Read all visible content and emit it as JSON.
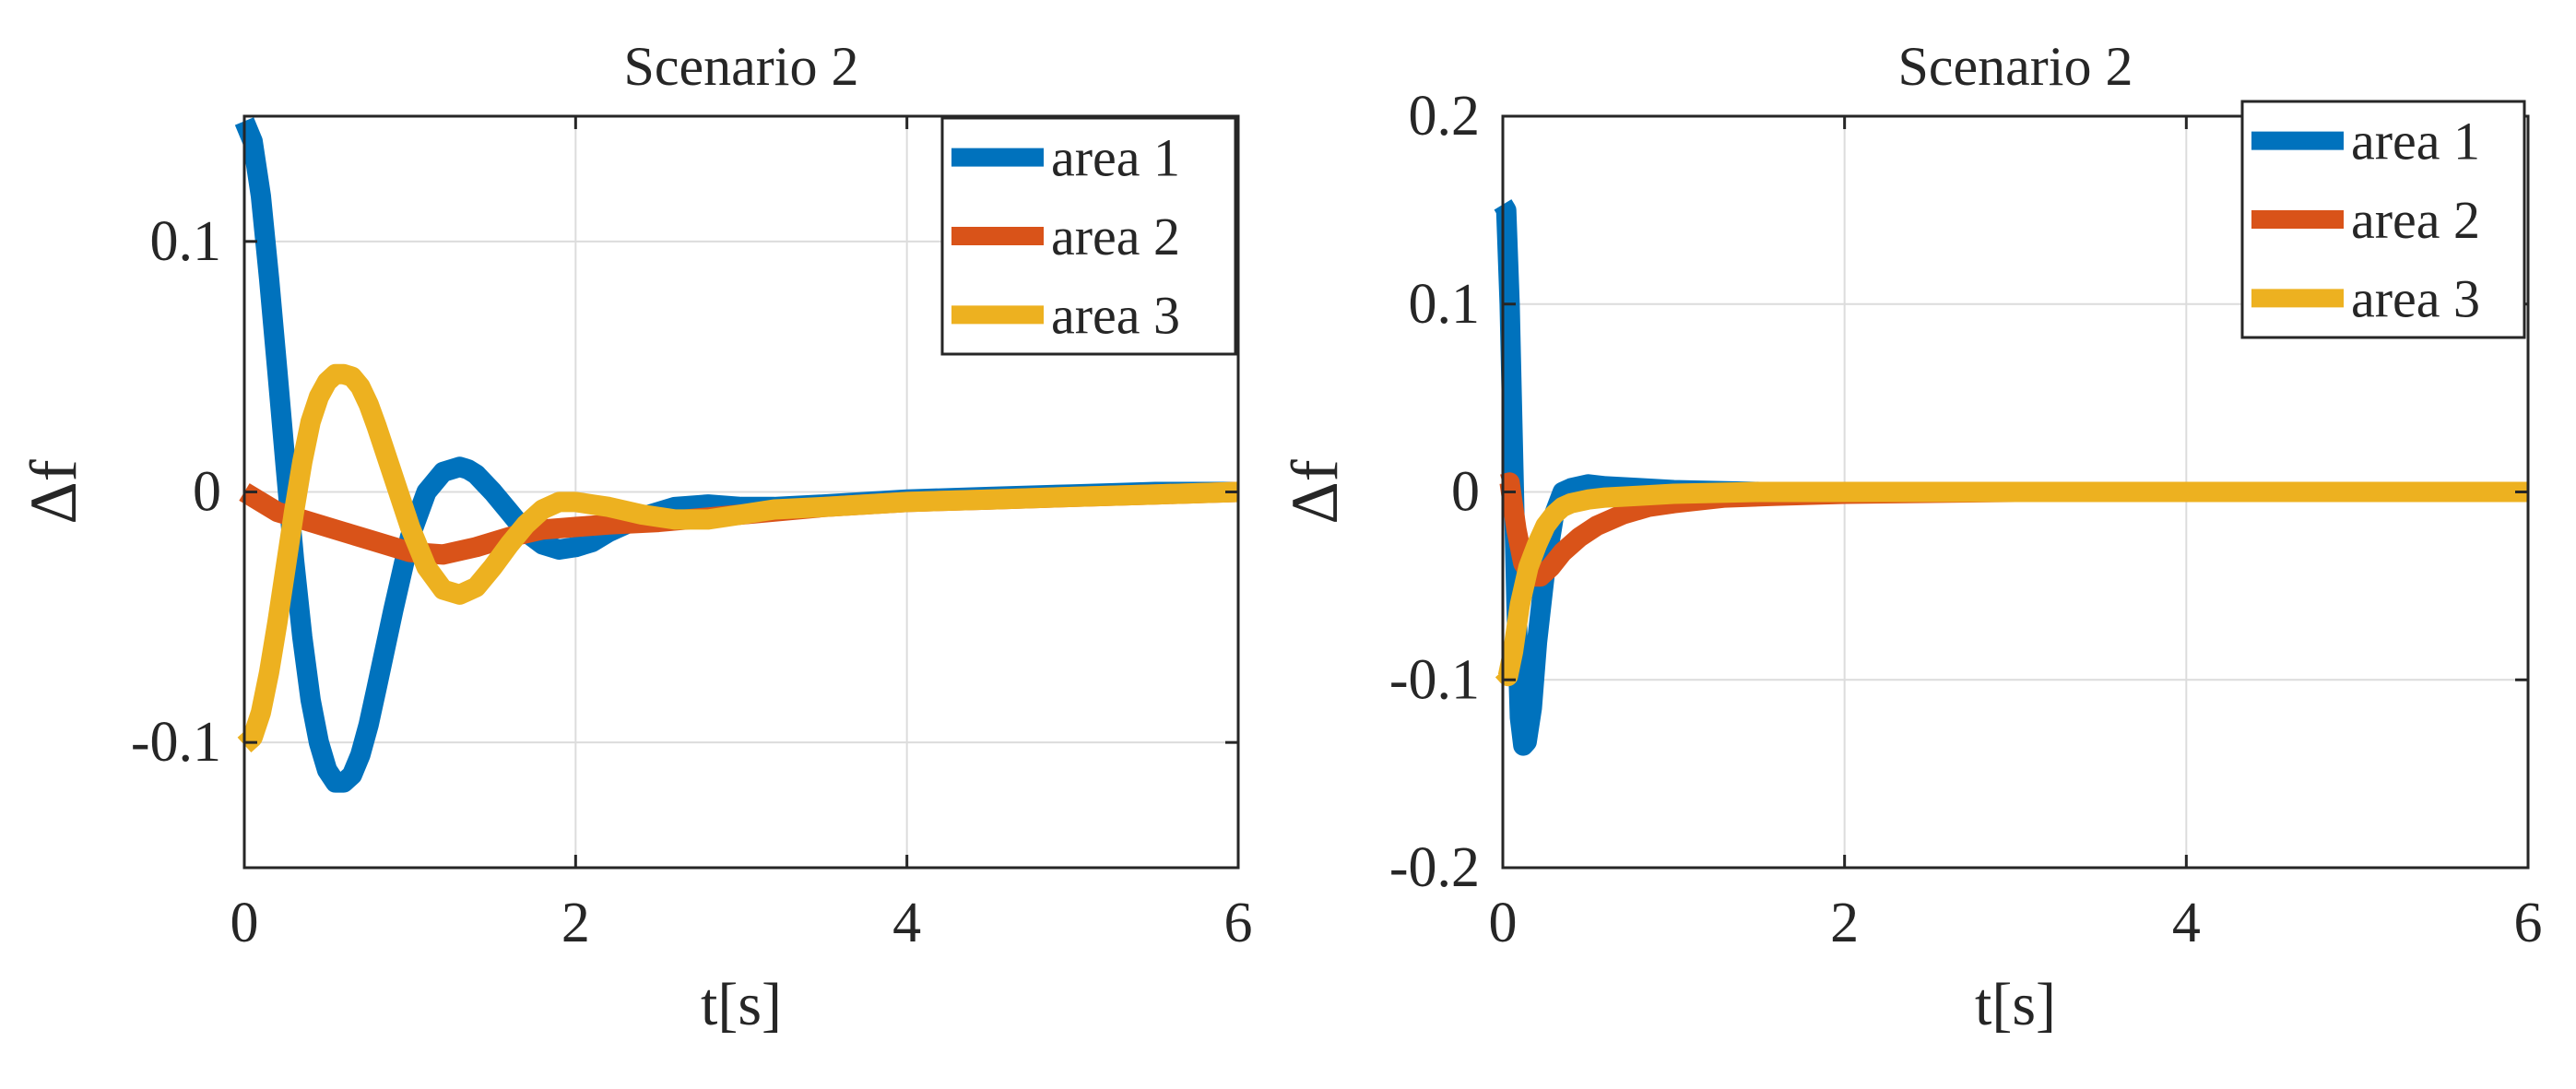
{
  "chart_data": [
    {
      "type": "line",
      "title": "Scenario 2",
      "xlabel": "t[s]",
      "ylabel": "Δf",
      "xlim": [
        0,
        6
      ],
      "ylim": [
        -0.15,
        0.15
      ],
      "xticks": [
        0,
        2,
        4,
        6
      ],
      "xtick_labels": [
        "0",
        "2",
        "4",
        "6"
      ],
      "yticks": [
        -0.1,
        0,
        0.1
      ],
      "ytick_labels": [
        "-0.1",
        "0",
        "0.1"
      ],
      "grid": true,
      "legend_position": "top-right",
      "series": [
        {
          "name": "area 1",
          "color": "#0072BD",
          "x": [
            0,
            0.05,
            0.1,
            0.15,
            0.2,
            0.25,
            0.3,
            0.35,
            0.4,
            0.45,
            0.5,
            0.55,
            0.6,
            0.65,
            0.7,
            0.75,
            0.8,
            0.9,
            1.0,
            1.1,
            1.2,
            1.3,
            1.35,
            1.4,
            1.5,
            1.6,
            1.7,
            1.8,
            1.9,
            2.0,
            2.1,
            2.2,
            2.4,
            2.6,
            2.8,
            3.0,
            3.2,
            3.5,
            4.0,
            4.5,
            5.0,
            5.5,
            6.0
          ],
          "y": [
            0.148,
            0.14,
            0.118,
            0.085,
            0.048,
            0.01,
            -0.027,
            -0.058,
            -0.083,
            -0.1,
            -0.111,
            -0.116,
            -0.116,
            -0.113,
            -0.105,
            -0.093,
            -0.078,
            -0.047,
            -0.018,
            0.0,
            0.008,
            0.01,
            0.009,
            0.007,
            0.0,
            -0.008,
            -0.016,
            -0.021,
            -0.023,
            -0.022,
            -0.02,
            -0.016,
            -0.01,
            -0.006,
            -0.005,
            -0.006,
            -0.006,
            -0.005,
            -0.003,
            -0.002,
            -0.001,
            0.0,
            0.0
          ]
        },
        {
          "name": "area 2",
          "color": "#D95319",
          "x": [
            0,
            0.2,
            0.4,
            0.6,
            0.8,
            1.0,
            1.2,
            1.4,
            1.6,
            1.8,
            2.0,
            2.2,
            2.5,
            3.0,
            3.5,
            4.0,
            4.5,
            5.0,
            5.5,
            6.0
          ],
          "y": [
            0.0,
            -0.008,
            -0.012,
            -0.016,
            -0.02,
            -0.024,
            -0.025,
            -0.022,
            -0.018,
            -0.015,
            -0.014,
            -0.013,
            -0.012,
            -0.009,
            -0.006,
            -0.004,
            -0.003,
            -0.002,
            -0.001,
            0.0
          ]
        },
        {
          "name": "area 3",
          "color": "#EDB120",
          "x": [
            0,
            0.05,
            0.1,
            0.15,
            0.2,
            0.25,
            0.3,
            0.35,
            0.4,
            0.45,
            0.5,
            0.55,
            0.6,
            0.65,
            0.7,
            0.75,
            0.8,
            0.9,
            1.0,
            1.1,
            1.2,
            1.3,
            1.4,
            1.5,
            1.6,
            1.7,
            1.8,
            1.9,
            2.0,
            2.1,
            2.2,
            2.4,
            2.6,
            2.8,
            3.0,
            3.2,
            3.5,
            4.0,
            4.5,
            5.0,
            5.5,
            6.0
          ],
          "y": [
            -0.101,
            -0.098,
            -0.088,
            -0.072,
            -0.052,
            -0.03,
            -0.008,
            0.012,
            0.028,
            0.038,
            0.044,
            0.047,
            0.047,
            0.046,
            0.042,
            0.035,
            0.026,
            0.006,
            -0.014,
            -0.03,
            -0.039,
            -0.041,
            -0.038,
            -0.03,
            -0.021,
            -0.013,
            -0.007,
            -0.004,
            -0.004,
            -0.005,
            -0.006,
            -0.009,
            -0.011,
            -0.011,
            -0.009,
            -0.007,
            -0.006,
            -0.004,
            -0.003,
            -0.002,
            -0.001,
            0.0
          ]
        }
      ]
    },
    {
      "type": "line",
      "title": "Scenario 2",
      "xlabel": "t[s]",
      "ylabel": "Δf",
      "xlim": [
        0,
        6
      ],
      "ylim": [
        -0.2,
        0.2
      ],
      "xticks": [
        0,
        2,
        4,
        6
      ],
      "xtick_labels": [
        "0",
        "2",
        "4",
        "6"
      ],
      "yticks": [
        -0.2,
        -0.1,
        0,
        0.1,
        0.2
      ],
      "ytick_labels": [
        "-0.2",
        "-0.1",
        "0",
        "0.1",
        "0.2"
      ],
      "grid": true,
      "legend_position": "top-right",
      "series": [
        {
          "name": "area 1",
          "color": "#0072BD",
          "x": [
            0,
            0.02,
            0.04,
            0.06,
            0.08,
            0.1,
            0.12,
            0.14,
            0.17,
            0.2,
            0.25,
            0.3,
            0.35,
            0.4,
            0.5,
            0.6,
            0.8,
            1.0,
            1.5,
            2.0,
            3.0,
            4.0,
            5.0,
            6.0
          ],
          "y": [
            0.153,
            0.15,
            0.1,
            0.02,
            -0.06,
            -0.12,
            -0.135,
            -0.133,
            -0.115,
            -0.08,
            -0.04,
            -0.012,
            0.0,
            0.002,
            0.004,
            0.003,
            0.002,
            0.001,
            0.0,
            0.0,
            0.0,
            0.0,
            0.0,
            0.0
          ]
        },
        {
          "name": "area 2",
          "color": "#D95319",
          "x": [
            0,
            0.04,
            0.08,
            0.12,
            0.17,
            0.22,
            0.28,
            0.35,
            0.45,
            0.55,
            0.7,
            0.85,
            1.0,
            1.3,
            1.6,
            2.0,
            3.0,
            4.0,
            5.0,
            6.0
          ],
          "y": [
            0.004,
            0.005,
            -0.02,
            -0.038,
            -0.045,
            -0.045,
            -0.04,
            -0.032,
            -0.024,
            -0.018,
            -0.012,
            -0.008,
            -0.006,
            -0.003,
            -0.002,
            -0.001,
            0.0,
            0.0,
            0.0,
            0.0
          ]
        },
        {
          "name": "area 3",
          "color": "#EDB120",
          "x": [
            0,
            0.03,
            0.06,
            0.1,
            0.15,
            0.2,
            0.25,
            0.3,
            0.35,
            0.4,
            0.5,
            0.6,
            0.8,
            1.0,
            1.5,
            2.0,
            3.0,
            4.0,
            5.0,
            6.0
          ],
          "y": [
            -0.095,
            -0.098,
            -0.085,
            -0.06,
            -0.04,
            -0.028,
            -0.018,
            -0.012,
            -0.008,
            -0.006,
            -0.004,
            -0.003,
            -0.002,
            -0.001,
            0.0,
            0.0,
            0.0,
            0.0,
            0.0,
            0.0
          ]
        }
      ]
    }
  ]
}
